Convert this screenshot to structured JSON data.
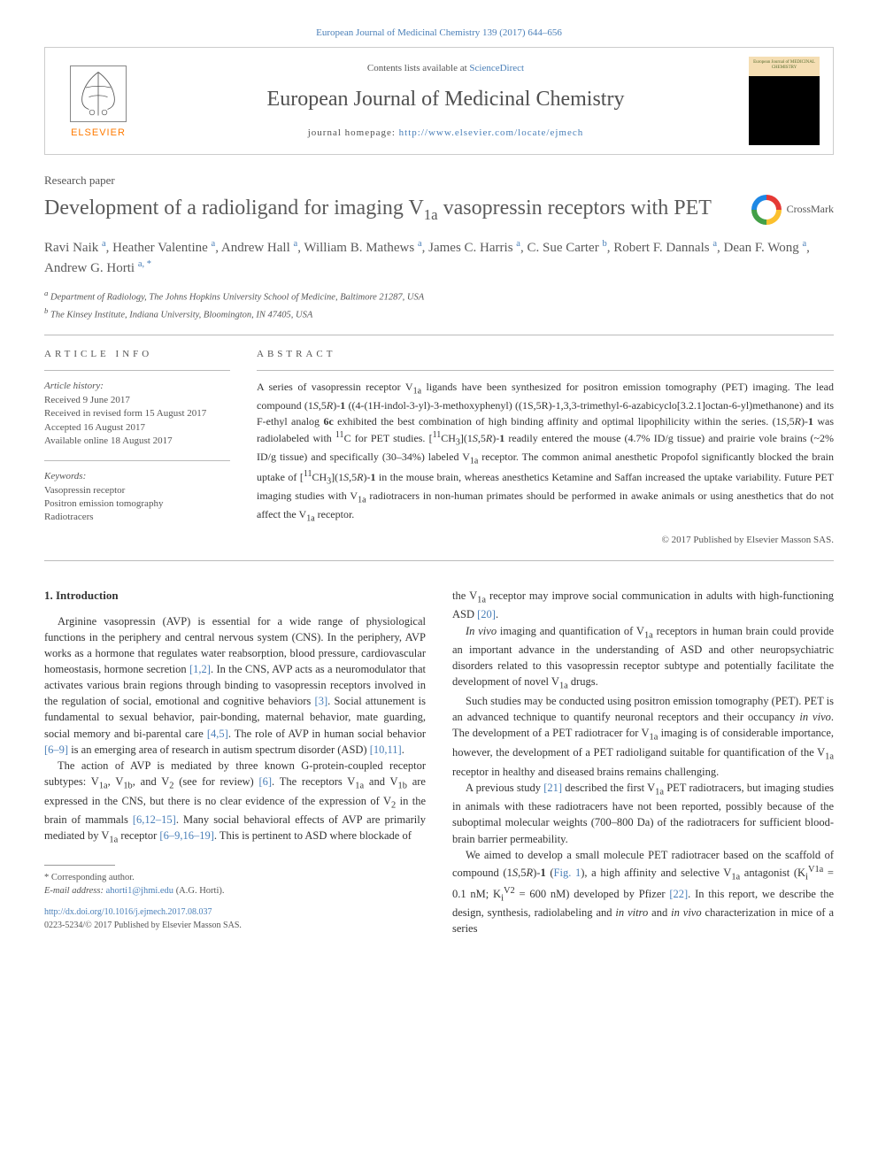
{
  "top_link": "European Journal of Medicinal Chemistry 139 (2017) 644–656",
  "header": {
    "elsevier": "ELSEVIER",
    "contents_prefix": "Contents lists available at ",
    "contents_link": "ScienceDirect",
    "journal_title": "European Journal of Medicinal Chemistry",
    "homepage_prefix": "journal homepage: ",
    "homepage_url": "http://www.elsevier.com/locate/ejmech",
    "cover_text": "European Journal of MEDICINAL CHEMISTRY"
  },
  "article_type": "Research paper",
  "title_parts": {
    "t1": "Development of a radioligand for imaging V",
    "sub1": "1a",
    "t2": " vasopressin receptors with PET"
  },
  "crossmark": "CrossMark",
  "authors": {
    "a1": "Ravi Naik ",
    "s1": "a",
    "a2": ", Heather Valentine ",
    "s2": "a",
    "a3": ", Andrew Hall ",
    "s3": "a",
    "a4": ", William B. Mathews ",
    "s4": "a",
    "a5": ", James C. Harris ",
    "s5": "a",
    "a6": ", C. Sue Carter ",
    "s6": "b",
    "a7": ", Robert F. Dannals ",
    "s7": "a",
    "a8": ", Dean F. Wong ",
    "s8": "a",
    "a9": ", Andrew G. Horti ",
    "s9": "a, *"
  },
  "affiliations": {
    "a": "Department of Radiology, The Johns Hopkins University School of Medicine, Baltimore 21287, USA",
    "b": "The Kinsey Institute, Indiana University, Bloomington, IN 47405, USA"
  },
  "article_info": {
    "heading": "ARTICLE INFO",
    "history_label": "Article history:",
    "h1": "Received 9 June 2017",
    "h2": "Received in revised form 15 August 2017",
    "h3": "Accepted 16 August 2017",
    "h4": "Available online 18 August 2017",
    "keywords_label": "Keywords:",
    "k1": "Vasopressin receptor",
    "k2": "Positron emission tomography",
    "k3": "Radiotracers"
  },
  "abstract": {
    "heading": "ABSTRACT",
    "body_html": "A series of vasopressin receptor V<sub>1a</sub> ligands have been synthesized for positron emission tomography (PET) imaging. The lead compound (1<i>S</i>,5<i>R</i>)-<b>1</b> ((4-(1H-indol-3-yl)-3-methoxyphenyl) ((1S,5R)-1,3,3-trimethyl-6-azabicyclo[3.2.1]octan-6-yl)methanone) and its F-ethyl analog <b>6c</b> exhibited the best combination of high binding affinity and optimal lipophilicity within the series. (1<i>S</i>,5<i>R</i>)-<b>1</b> was radiolabeled with <sup>11</sup>C for PET studies. [<sup>11</sup>CH<sub>3</sub>](1<i>S</i>,5<i>R</i>)-<b>1</b> readily entered the mouse (4.7% ID/g tissue) and prairie vole brains (~2% ID/g tissue) and specifically (30–34%) labeled V<sub>1a</sub> receptor. The common animal anesthetic Propofol significantly blocked the brain uptake of [<sup>11</sup>CH<sub>3</sub>](1<i>S</i>,5<i>R</i>)-<b>1</b> in the mouse brain, whereas anesthetics Ketamine and Saffan increased the uptake variability. Future PET imaging studies with V<sub>1a</sub> radiotracers in non-human primates should be performed in awake animals or using anesthetics that do not affect the V<sub>1a</sub> receptor.",
    "copyright": "© 2017 Published by Elsevier Masson SAS."
  },
  "intro": {
    "heading": "1. Introduction",
    "p1_html": "Arginine vasopressin (AVP) is essential for a wide range of physiological functions in the periphery and central nervous system (CNS). In the periphery, AVP works as a hormone that regulates water reabsorption, blood pressure, cardiovascular homeostasis, hormone secretion <span class='ref'>[1,2]</span>. In the CNS, AVP acts as a neuromodulator that activates various brain regions through binding to vasopressin receptors involved in the regulation of social, emotional and cognitive behaviors <span class='ref'>[3]</span>. Social attunement is fundamental to sexual behavior, pair-bonding, maternal behavior, mate guarding, social memory and bi-parental care <span class='ref'>[4,5]</span>. The role of AVP in human social behavior <span class='ref'>[6–9]</span> is an emerging area of research in autism spectrum disorder (ASD) <span class='ref'>[10,11]</span>.",
    "p2_html": "The action of AVP is mediated by three known G-protein-coupled receptor subtypes: V<sub>1a</sub>, V<sub>1b</sub>, and V<sub>2</sub> (see for review) <span class='ref'>[6]</span>. The receptors V<sub>1a</sub> and V<sub>1b</sub> are expressed in the CNS, but there is no clear evidence of the expression of V<sub>2</sub> in the brain of mammals <span class='ref'>[6,12–15]</span>. Many social behavioral effects of AVP are primarily mediated by V<sub>1a</sub> receptor <span class='ref'>[6–9,16–19]</span>. This is pertinent to ASD where blockade of",
    "p3_html": "the V<sub>1a</sub> receptor may improve social communication in adults with high-functioning ASD <span class='ref'>[20]</span>.",
    "p4_html": "<i>In vivo</i> imaging and quantification of V<sub>1a</sub> receptors in human brain could provide an important advance in the understanding of ASD and other neuropsychiatric disorders related to this vasopressin receptor subtype and potentially facilitate the development of novel V<sub>1a</sub> drugs.",
    "p5_html": "Such studies may be conducted using positron emission tomography (PET). PET is an advanced technique to quantify neuronal receptors and their occupancy <i>in vivo</i>. The development of a PET radiotracer for V<sub>1a</sub> imaging is of considerable importance, however, the development of a PET radioligand suitable for quantification of the V<sub>1a</sub> receptor in healthy and diseased brains remains challenging.",
    "p6_html": "A previous study <span class='ref'>[21]</span> described the first V<sub>1a</sub> PET radiotracers, but imaging studies in animals with these radiotracers have not been reported, possibly because of the suboptimal molecular weights (700–800 Da) of the radiotracers for sufficient blood-brain barrier permeability.",
    "p7_html": "We aimed to develop a small molecule PET radiotracer based on the scaffold of compound (1<i>S</i>,5<i>R</i>)-<b>1</b> (<span class='ref'>Fig. 1</span>), a high affinity and selective V<sub>1a</sub> antagonist (K<sub>i</sub><sup>V1a</sup> = 0.1 nM; K<sub>i</sub><sup>V2</sup> = 600 nM) developed by Pfizer <span class='ref'>[22]</span>. In this report, we describe the design, synthesis, radiolabeling and <i>in vitro</i> and <i>in vivo</i> characterization in mice of a series"
  },
  "footnote": {
    "corr": "* Corresponding author.",
    "email_label": "E-mail address: ",
    "email": "ahorti1@jhmi.edu",
    "email_who": " (A.G. Horti)."
  },
  "doi": {
    "url": "http://dx.doi.org/10.1016/j.ejmech.2017.08.037",
    "line2": "0223-5234/© 2017 Published by Elsevier Masson SAS."
  },
  "colors": {
    "link": "#4a7fb8",
    "text": "#333333",
    "muted": "#555555",
    "border": "#cccccc",
    "elsevier_orange": "#ff7a00"
  }
}
